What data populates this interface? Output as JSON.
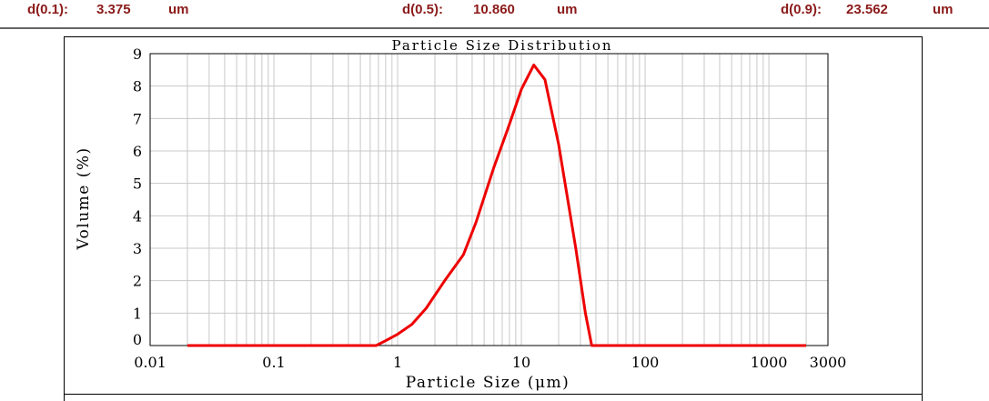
{
  "summary": [
    {
      "label": "d(0.1):",
      "value": "3.375",
      "unit": "um"
    },
    {
      "label": "d(0.5):",
      "value": "10.860",
      "unit": "um"
    },
    {
      "label": "d(0.9):",
      "value": "23.562",
      "unit": "um"
    }
  ],
  "chart_data": {
    "type": "line",
    "title": "Particle Size Distribution",
    "xlabel": "Particle Size (μm)",
    "ylabel": "Volume (%)",
    "xscale": "log",
    "xlim": [
      0.01,
      3000
    ],
    "ylim": [
      0,
      9
    ],
    "xticks": [
      "0.01",
      "0.1",
      "1",
      "10",
      "100",
      "1000",
      "3000"
    ],
    "yticks": [
      "0",
      "1",
      "2",
      "3",
      "4",
      "5",
      "6",
      "7",
      "8",
      "9"
    ],
    "grid": true,
    "color": "#ee0000",
    "series": [
      {
        "points": [
          [
            0.02,
            0
          ],
          [
            0.67,
            0
          ],
          [
            0.8,
            0.15
          ],
          [
            1.0,
            0.35
          ],
          [
            1.3,
            0.65
          ],
          [
            1.7,
            1.15
          ],
          [
            2.4,
            2.0
          ],
          [
            3.4,
            2.8
          ],
          [
            4.3,
            3.8
          ],
          [
            6.0,
            5.5
          ],
          [
            7.8,
            6.7
          ],
          [
            10,
            7.9
          ],
          [
            12.6,
            8.65
          ],
          [
            15.5,
            8.2
          ],
          [
            20,
            6.2
          ],
          [
            27.5,
            3.0
          ],
          [
            32.9,
            1.0
          ],
          [
            37,
            0
          ],
          [
            2000,
            0
          ]
        ]
      }
    ]
  }
}
